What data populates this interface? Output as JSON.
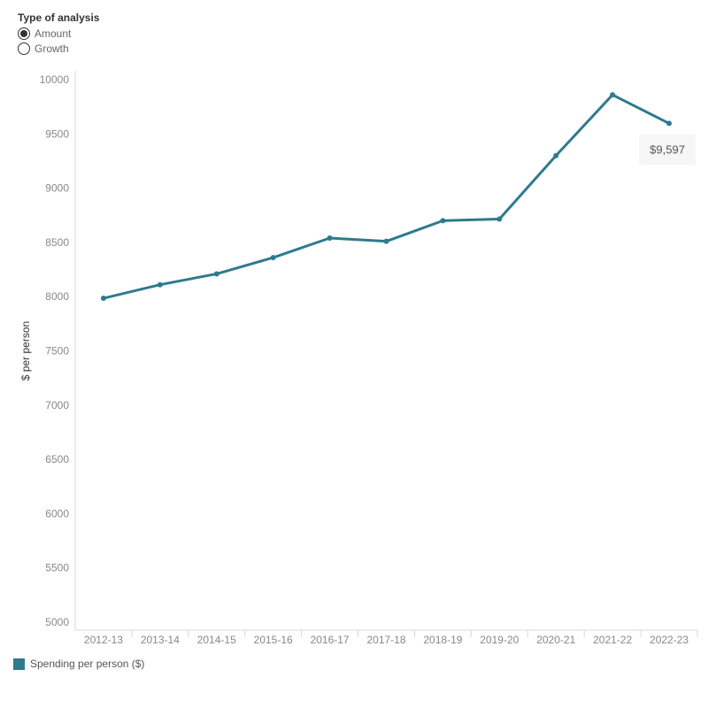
{
  "controls": {
    "title": "Type of analysis",
    "options": [
      {
        "label": "Amount",
        "selected": true
      },
      {
        "label": "Growth",
        "selected": false
      }
    ]
  },
  "colors": {
    "series": "#2e7a8e",
    "tooltip_bg": "#f6f6f6",
    "axis": "#d9d9d9",
    "tick_text": "#888888"
  },
  "chart_data": {
    "type": "line",
    "title": "",
    "xlabel": "",
    "ylabel": "$ per person",
    "ylim": [
      5000,
      10000
    ],
    "yticks": [
      5000,
      5500,
      6000,
      6500,
      7000,
      7500,
      8000,
      8500,
      9000,
      9500,
      10000
    ],
    "grid": false,
    "legend_position": "bottom-left",
    "categories": [
      "2012-13",
      "2013-14",
      "2014-15",
      "2015-16",
      "2016-17",
      "2017-18",
      "2018-19",
      "2019-20",
      "2020-21",
      "2021-22",
      "2022-23"
    ],
    "series": [
      {
        "name": "Spending per person ($)",
        "values": [
          7985,
          8110,
          8210,
          8360,
          8540,
          8510,
          8700,
          8715,
          9300,
          9860,
          9597
        ]
      }
    ],
    "annotations": [
      {
        "category": "2022-23",
        "text": "$9,597"
      }
    ]
  }
}
